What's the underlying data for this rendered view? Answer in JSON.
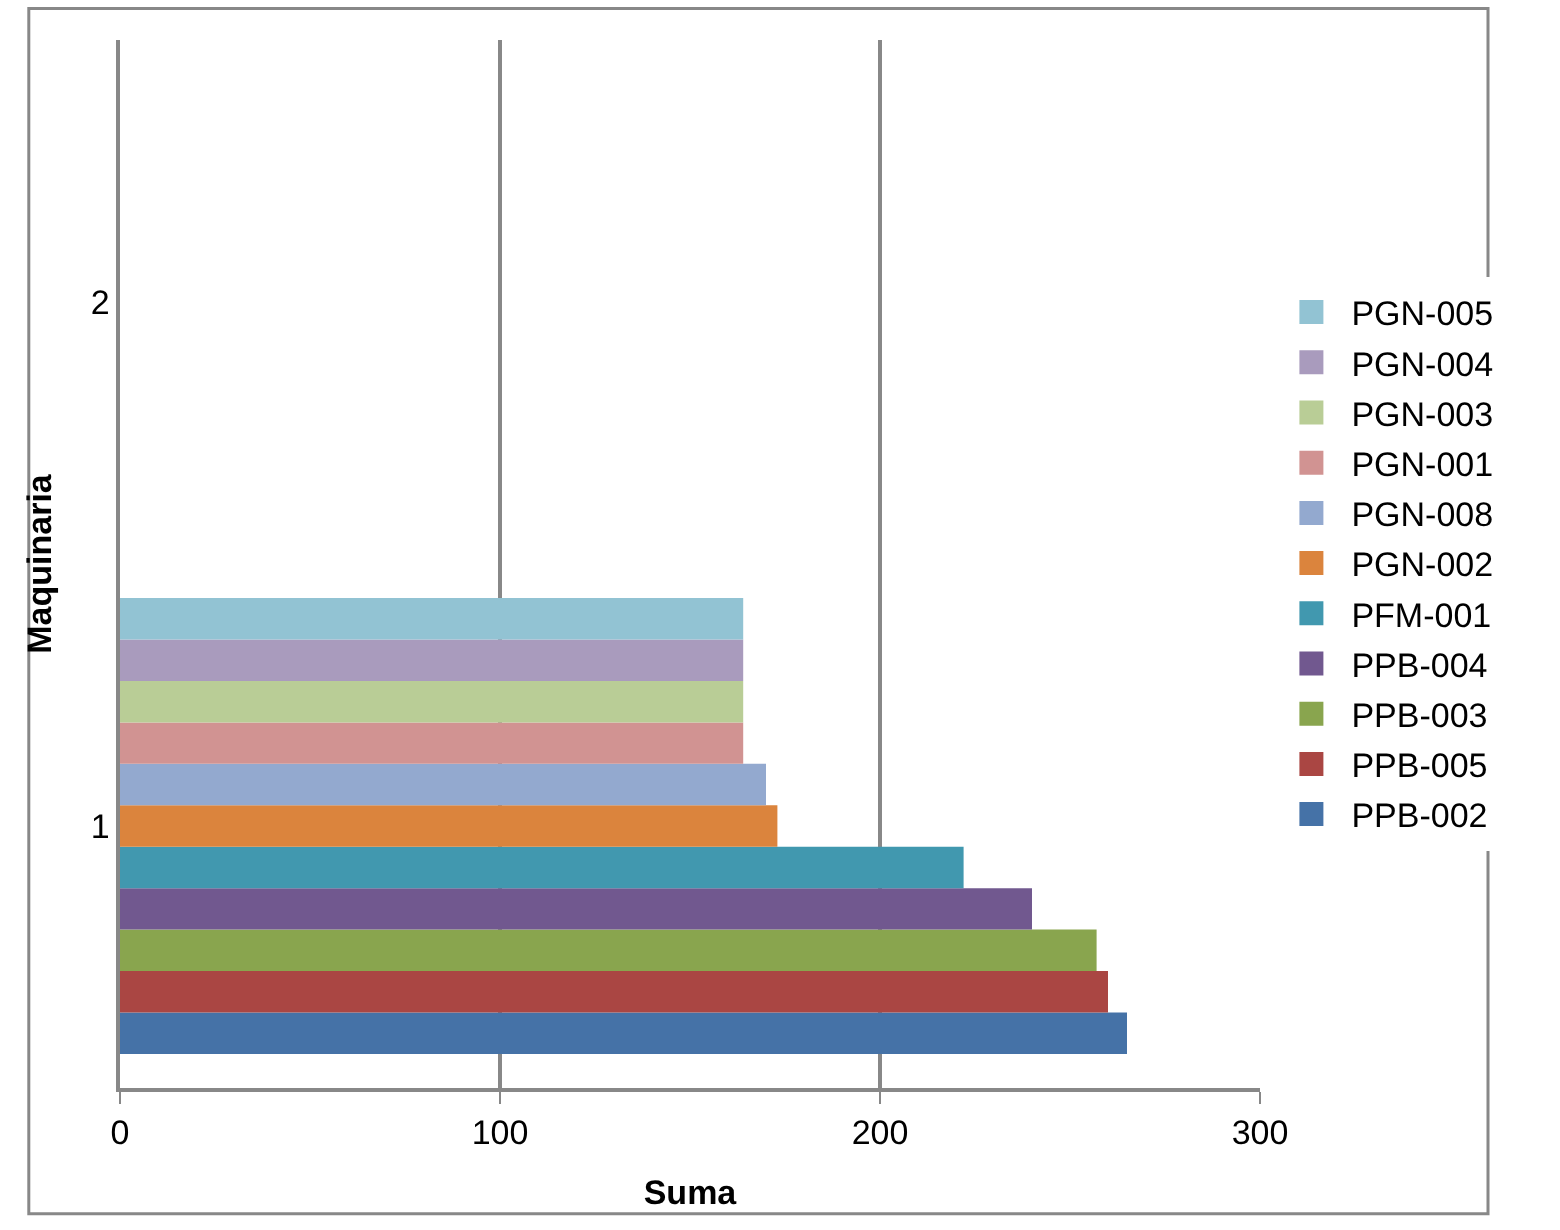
{
  "chart_data": {
    "type": "bar",
    "orientation": "horizontal",
    "xlabel": "Suma",
    "ylabel": "Maquinaria",
    "categories": [
      "2",
      "1"
    ],
    "series": [
      {
        "name": "PPB-002",
        "color": "#4572a7",
        "values": [
          null,
          265
        ]
      },
      {
        "name": "PPB-005",
        "color": "#aa4643",
        "values": [
          null,
          260
        ]
      },
      {
        "name": "PPB-003",
        "color": "#89a54e",
        "values": [
          null,
          257
        ]
      },
      {
        "name": "PPB-004",
        "color": "#71588f",
        "values": [
          null,
          240
        ]
      },
      {
        "name": "PFM-001",
        "color": "#4198af",
        "values": [
          null,
          222
        ]
      },
      {
        "name": "PGN-002",
        "color": "#db843d",
        "values": [
          null,
          173
        ]
      },
      {
        "name": "PGN-008",
        "color": "#93a9cf",
        "values": [
          null,
          170
        ]
      },
      {
        "name": "PGN-001",
        "color": "#d19392",
        "values": [
          null,
          164
        ]
      },
      {
        "name": "PGN-003",
        "color": "#b9cd96",
        "values": [
          null,
          164
        ]
      },
      {
        "name": "PGN-004",
        "color": "#a99bbd",
        "values": [
          null,
          164
        ]
      },
      {
        "name": "PGN-005",
        "color": "#92c3d3",
        "values": [
          null,
          164
        ]
      }
    ],
    "xlim": [
      0,
      300
    ],
    "xticks": [
      0,
      100,
      200,
      300
    ],
    "grid": "x",
    "legend": "right"
  }
}
